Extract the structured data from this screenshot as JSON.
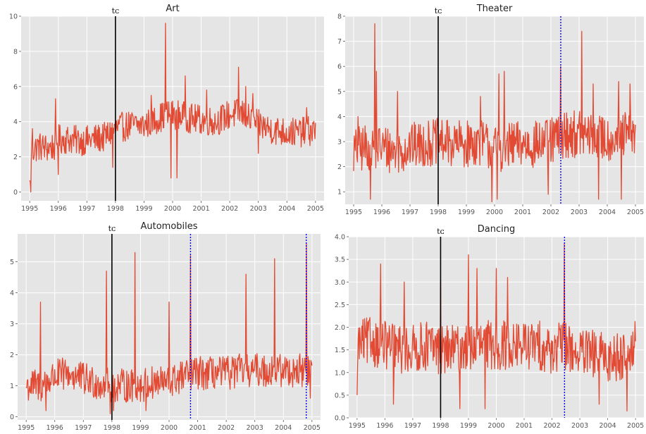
{
  "chart_data": [
    {
      "type": "line",
      "title": "Art",
      "xlabel": "",
      "ylabel": "",
      "xlim": [
        1994.7,
        2005.3
      ],
      "ylim": [
        -0.5,
        10
      ],
      "x_ticks": [
        "1995",
        "1996",
        "1997",
        "1998",
        "1999",
        "2000",
        "2001",
        "2002",
        "2003",
        "2004",
        "2005"
      ],
      "y_ticks": [
        "0",
        "2",
        "4",
        "6",
        "8",
        "10"
      ],
      "grid": true,
      "line_color": "#e24a33",
      "change_point": {
        "label": "tᴄ",
        "x": 1998.0,
        "color": "#000000"
      },
      "detected_points": [],
      "series_profile": [
        [
          1995.0,
          0.3
        ],
        [
          1995.05,
          2.3
        ],
        [
          1995.3,
          2.6
        ],
        [
          1995.6,
          2.5
        ],
        [
          1995.9,
          2.6
        ],
        [
          1996.0,
          3.0
        ],
        [
          1996.4,
          3.0
        ],
        [
          1996.8,
          2.9
        ],
        [
          1997.2,
          3.0
        ],
        [
          1997.6,
          3.1
        ],
        [
          1998.0,
          3.6
        ],
        [
          1998.5,
          3.8
        ],
        [
          1999.0,
          3.8
        ],
        [
          1999.5,
          4.2
        ],
        [
          1999.8,
          4.4
        ],
        [
          2000.2,
          4.4
        ],
        [
          2000.6,
          4.2
        ],
        [
          2001.0,
          4.1
        ],
        [
          2001.5,
          4.0
        ],
        [
          2002.0,
          4.4
        ],
        [
          2002.4,
          4.5
        ],
        [
          2002.8,
          4.0
        ],
        [
          2003.2,
          3.7
        ],
        [
          2003.6,
          3.5
        ],
        [
          2004.0,
          3.4
        ],
        [
          2004.5,
          3.4
        ],
        [
          2005.0,
          3.5
        ]
      ],
      "noise": 0.85,
      "peaks": [
        [
          1995.03,
          0.0
        ],
        [
          1995.1,
          3.6
        ],
        [
          1995.9,
          5.3
        ],
        [
          1996.0,
          1.0
        ],
        [
          1997.9,
          1.4
        ],
        [
          1999.25,
          5.5
        ],
        [
          1999.75,
          9.6
        ],
        [
          1999.95,
          0.8
        ],
        [
          2000.15,
          0.8
        ],
        [
          2000.45,
          6.6
        ],
        [
          2001.2,
          5.8
        ],
        [
          2002.3,
          7.1
        ],
        [
          2002.55,
          6.0
        ],
        [
          2002.8,
          5.6
        ],
        [
          2003.0,
          2.2
        ],
        [
          2004.7,
          4.8
        ]
      ]
    },
    {
      "type": "line",
      "title": "Theater",
      "xlabel": "",
      "ylabel": "",
      "xlim": [
        1994.7,
        2005.3
      ],
      "ylim": [
        0.5,
        8.0
      ],
      "x_ticks": [
        "1995",
        "1996",
        "1997",
        "1998",
        "1999",
        "2000",
        "2001",
        "2002",
        "2003",
        "2004",
        "2005"
      ],
      "y_ticks": [
        "1",
        "2",
        "3",
        "4",
        "5",
        "6",
        "7",
        "8"
      ],
      "grid": true,
      "line_color": "#e24a33",
      "change_point": {
        "label": "tᴄ",
        "x": 1998.0,
        "color": "#000000"
      },
      "detected_points": [
        {
          "x": 2002.35,
          "color": "#0000ff"
        }
      ],
      "series_profile": [
        [
          1995.0,
          2.6
        ],
        [
          1995.5,
          2.8
        ],
        [
          1996.0,
          2.8
        ],
        [
          1996.5,
          2.6
        ],
        [
          1997.0,
          2.8
        ],
        [
          1997.5,
          2.9
        ],
        [
          1998.0,
          3.0
        ],
        [
          1998.5,
          2.9
        ],
        [
          1999.0,
          2.9
        ],
        [
          1999.5,
          3.0
        ],
        [
          2000.0,
          2.7
        ],
        [
          2000.5,
          2.8
        ],
        [
          2001.0,
          2.9
        ],
        [
          2001.5,
          2.9
        ],
        [
          2002.0,
          3.0
        ],
        [
          2002.5,
          3.3
        ],
        [
          2003.0,
          3.3
        ],
        [
          2003.5,
          3.2
        ],
        [
          2004.0,
          3.1
        ],
        [
          2004.5,
          3.2
        ],
        [
          2005.0,
          3.3
        ]
      ],
      "noise": 0.95,
      "peaks": [
        [
          1995.15,
          4.0
        ],
        [
          1995.6,
          0.7
        ],
        [
          1995.75,
          7.7
        ],
        [
          1995.8,
          5.8
        ],
        [
          1996.55,
          5.0
        ],
        [
          1999.5,
          4.8
        ],
        [
          1999.9,
          0.6
        ],
        [
          2000.1,
          0.7
        ],
        [
          2000.15,
          5.7
        ],
        [
          2000.35,
          5.8
        ],
        [
          2001.9,
          0.9
        ],
        [
          2002.35,
          6.0
        ],
        [
          2003.1,
          7.4
        ],
        [
          2003.5,
          5.3
        ],
        [
          2003.7,
          0.7
        ],
        [
          2004.4,
          5.4
        ],
        [
          2004.5,
          0.7
        ],
        [
          2004.8,
          5.3
        ]
      ]
    },
    {
      "type": "line",
      "title": "Automobiles",
      "xlabel": "",
      "ylabel": "",
      "xlim": [
        1994.7,
        2005.3
      ],
      "ylim": [
        -0.1,
        5.9
      ],
      "x_ticks": [
        "1995",
        "1996",
        "1997",
        "1998",
        "1999",
        "2000",
        "2001",
        "2002",
        "2003",
        "2004",
        "2005"
      ],
      "y_ticks": [
        "0",
        "1",
        "2",
        "3",
        "4",
        "5"
      ],
      "grid": true,
      "line_color": "#e24a33",
      "change_point": {
        "label": "tᴄ",
        "x": 1998.0,
        "color": "#000000"
      },
      "detected_points": [
        {
          "x": 2000.75,
          "color": "#0000ff"
        },
        {
          "x": 2004.8,
          "color": "#0000ff"
        }
      ],
      "series_profile": [
        [
          1995.0,
          1.0
        ],
        [
          1995.5,
          1.0
        ],
        [
          1996.0,
          1.3
        ],
        [
          1996.5,
          1.4
        ],
        [
          1997.0,
          1.2
        ],
        [
          1997.5,
          1.1
        ],
        [
          1998.0,
          1.0
        ],
        [
          1998.5,
          1.0
        ],
        [
          1999.0,
          1.0
        ],
        [
          1999.5,
          1.1
        ],
        [
          2000.0,
          1.1
        ],
        [
          2000.5,
          1.3
        ],
        [
          2001.0,
          1.4
        ],
        [
          2001.5,
          1.4
        ],
        [
          2002.0,
          1.4
        ],
        [
          2002.5,
          1.5
        ],
        [
          2003.0,
          1.5
        ],
        [
          2003.5,
          1.5
        ],
        [
          2004.0,
          1.5
        ],
        [
          2004.5,
          1.5
        ],
        [
          2005.0,
          1.5
        ]
      ],
      "noise": 0.55,
      "peaks": [
        [
          1995.5,
          3.7
        ],
        [
          1995.7,
          0.2
        ],
        [
          1997.8,
          4.7
        ],
        [
          1997.95,
          0.1
        ],
        [
          1998.05,
          0.2
        ],
        [
          1998.8,
          5.3
        ],
        [
          1999.2,
          0.2
        ],
        [
          2000.0,
          3.7
        ],
        [
          2000.75,
          5.2
        ],
        [
          2002.7,
          4.6
        ],
        [
          2003.7,
          5.1
        ],
        [
          2004.8,
          5.6
        ],
        [
          2004.95,
          0.6
        ]
      ]
    },
    {
      "type": "line",
      "title": "Dancing",
      "xlabel": "",
      "ylabel": "",
      "xlim": [
        1994.7,
        2005.3
      ],
      "ylim": [
        0.0,
        4.0
      ],
      "x_ticks": [
        "1995",
        "1996",
        "1997",
        "1998",
        "1999",
        "2000",
        "2001",
        "2002",
        "2003",
        "2004",
        "2005"
      ],
      "y_ticks": [
        "0.0",
        "0.5",
        "1.0",
        "1.5",
        "2.0",
        "2.5",
        "3.0",
        "3.5",
        "4.0"
      ],
      "grid": true,
      "line_color": "#e24a33",
      "change_point": {
        "label": "tᴄ",
        "x": 1998.0,
        "color": "#000000"
      },
      "detected_points": [
        {
          "x": 2002.45,
          "color": "#0000ff"
        }
      ],
      "series_profile": [
        [
          1995.0,
          1.6
        ],
        [
          1995.5,
          1.7
        ],
        [
          1996.0,
          1.6
        ],
        [
          1996.5,
          1.5
        ],
        [
          1997.0,
          1.5
        ],
        [
          1997.5,
          1.6
        ],
        [
          1998.0,
          1.5
        ],
        [
          1998.5,
          1.5
        ],
        [
          1999.0,
          1.6
        ],
        [
          1999.5,
          1.6
        ],
        [
          2000.0,
          1.6
        ],
        [
          2000.5,
          1.6
        ],
        [
          2001.0,
          1.6
        ],
        [
          2001.5,
          1.6
        ],
        [
          2002.0,
          1.5
        ],
        [
          2002.5,
          1.6
        ],
        [
          2003.0,
          1.4
        ],
        [
          2003.5,
          1.4
        ],
        [
          2004.0,
          1.3
        ],
        [
          2004.5,
          1.4
        ],
        [
          2005.0,
          1.6
        ]
      ],
      "noise": 0.55,
      "peaks": [
        [
          1995.0,
          0.5
        ],
        [
          1995.85,
          3.4
        ],
        [
          1996.3,
          0.3
        ],
        [
          1996.7,
          3.0
        ],
        [
          1998.0,
          3.0
        ],
        [
          1998.7,
          0.2
        ],
        [
          1999.0,
          3.6
        ],
        [
          1999.3,
          3.3
        ],
        [
          1999.6,
          0.2
        ],
        [
          2000.0,
          3.3
        ],
        [
          2000.4,
          3.1
        ],
        [
          2002.45,
          3.85
        ],
        [
          2003.7,
          0.3
        ],
        [
          2004.7,
          0.15
        ]
      ]
    }
  ]
}
